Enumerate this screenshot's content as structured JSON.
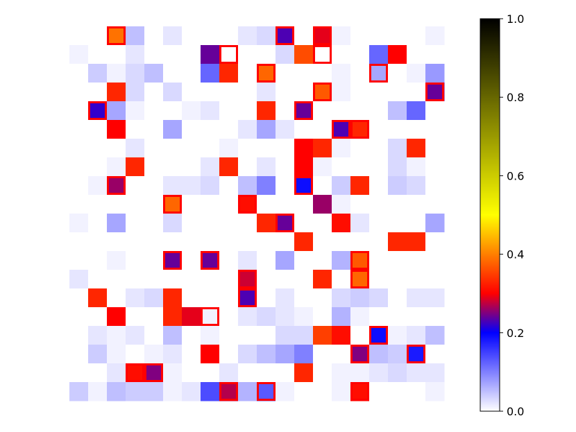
{
  "chart_data": {
    "type": "heatmap",
    "title": "",
    "xlabel": "",
    "ylabel": "",
    "axes_visible": false,
    "rows": 20,
    "cols": 20,
    "colormap": "gnuplot2_r",
    "colorbar": {
      "vmin": 0.0,
      "vmax": 1.0,
      "ticks": [
        "0.0",
        "0.2",
        "0.4",
        "0.6",
        "0.8",
        "1.0"
      ],
      "stops": [
        {
          "v": 0.0,
          "color": "#ffffff"
        },
        {
          "v": 0.2,
          "color": "#0000ff"
        },
        {
          "v": 0.3,
          "color": "#ff0000"
        },
        {
          "v": 0.4,
          "color": "#ff7f00"
        },
        {
          "v": 0.5,
          "color": "#ffff00"
        },
        {
          "v": 0.75,
          "color": "#808000"
        },
        {
          "v": 1.0,
          "color": "#000000"
        }
      ]
    },
    "highlight_color": "#ff0000",
    "values": [
      [
        0,
        0,
        0.39,
        0.05,
        0,
        0.02,
        0,
        0,
        0,
        0.02,
        0.03,
        0.23,
        0,
        0.29,
        0.01,
        0,
        0,
        0,
        0,
        0.01
      ],
      [
        0.01,
        0,
        0,
        0.02,
        0,
        0,
        0,
        0.24,
        0,
        0,
        0,
        0.03,
        0.36,
        0,
        0,
        0,
        0.12,
        0.3,
        0,
        0
      ],
      [
        0,
        0.04,
        0.01,
        0.03,
        0.05,
        0,
        0,
        0.12,
        0.33,
        0,
        0.38,
        0,
        0,
        0,
        0.01,
        0,
        0.07,
        0,
        0.01,
        0.08
      ],
      [
        0,
        0,
        0.33,
        0.03,
        0,
        0.03,
        0,
        0,
        0,
        0,
        0.02,
        0,
        0,
        0.37,
        0.01,
        0,
        0,
        0,
        0,
        0.24
      ],
      [
        0,
        0.22,
        0.07,
        0.01,
        0,
        0,
        0.01,
        0.02,
        0,
        0,
        0.33,
        0,
        0.24,
        0,
        0,
        0,
        0,
        0.05,
        0.12,
        0
      ],
      [
        0,
        0,
        0.3,
        0,
        0,
        0.07,
        0,
        0,
        0,
        0.02,
        0.07,
        0.02,
        0,
        0,
        0.23,
        0.33,
        0,
        0,
        0,
        0
      ],
      [
        0,
        0,
        0,
        0.02,
        0,
        0,
        0,
        0,
        0.01,
        0,
        0,
        0,
        0.3,
        0.33,
        0.01,
        0,
        0,
        0.03,
        0.33,
        0
      ],
      [
        0,
        0,
        0.01,
        0.33,
        0,
        0,
        0,
        0.02,
        0.33,
        0,
        0.02,
        0,
        0.3,
        0.01,
        0,
        0,
        0,
        0.03,
        0.01,
        0
      ],
      [
        0,
        0.01,
        0.26,
        0,
        0,
        0.02,
        0.02,
        0.03,
        0,
        0.05,
        0.1,
        0,
        0.19,
        0,
        0.04,
        0.33,
        0,
        0.04,
        0.03,
        0
      ],
      [
        0,
        0,
        0,
        0,
        0,
        0.38,
        0,
        0,
        0,
        0.31,
        0,
        0,
        0,
        0.26,
        0.01,
        0,
        0,
        0,
        0,
        0
      ],
      [
        0.01,
        0,
        0.07,
        0,
        0,
        0.03,
        0,
        0,
        0,
        0,
        0.33,
        0.24,
        0,
        0,
        0.31,
        0.02,
        0,
        0,
        0,
        0.07
      ],
      [
        0,
        0,
        0,
        0,
        0,
        0,
        0,
        0,
        0,
        0,
        0,
        0,
        0.33,
        0,
        0,
        0,
        0,
        0.33,
        0.33,
        0
      ],
      [
        0,
        0,
        0.01,
        0,
        0,
        0.24,
        0,
        0.24,
        0,
        0.02,
        0,
        0.07,
        0,
        0,
        0.06,
        0.37,
        0,
        0,
        0,
        0
      ],
      [
        0.02,
        0,
        0,
        0,
        0,
        0,
        0,
        0,
        0,
        0.28,
        0,
        0,
        0,
        0.33,
        0,
        0.38,
        0,
        0,
        0,
        0
      ],
      [
        0,
        0.33,
        0,
        0.02,
        0.03,
        0.33,
        0,
        0,
        0,
        0.23,
        0,
        0.02,
        0,
        0,
        0.03,
        0.04,
        0.03,
        0,
        0.02,
        0.02
      ],
      [
        0,
        0,
        0.3,
        0,
        0,
        0.33,
        0.29,
        0.01,
        0,
        0.02,
        0.03,
        0.02,
        0.01,
        0,
        0.06,
        0.01,
        0,
        0,
        0,
        0
      ],
      [
        0,
        0.02,
        0.01,
        0.02,
        0,
        0.05,
        0,
        0.01,
        0,
        0,
        0,
        0.03,
        0.03,
        0.35,
        0.31,
        0,
        0.19,
        0.01,
        0.02,
        0.05
      ],
      [
        0,
        0.04,
        0.01,
        0,
        0.01,
        0.02,
        0,
        0.3,
        0,
        0.03,
        0.05,
        0.07,
        0.1,
        0,
        0,
        0.25,
        0.05,
        0.04,
        0.18,
        0
      ],
      [
        0,
        0,
        0.02,
        0.31,
        0.25,
        0.01,
        0,
        0,
        0.02,
        0,
        0,
        0,
        0.33,
        0,
        0.01,
        0.01,
        0.02,
        0.03,
        0.02,
        0.02
      ],
      [
        0.04,
        0.01,
        0.05,
        0.04,
        0.04,
        0.01,
        0.02,
        0.14,
        0.27,
        0.06,
        0.13,
        0.01,
        0,
        0,
        0.01,
        0.31,
        0,
        0,
        0,
        0.01
      ]
    ],
    "highlighted": [
      [
        0,
        2
      ],
      [
        0,
        11
      ],
      [
        0,
        13
      ],
      [
        1,
        8
      ],
      [
        1,
        13
      ],
      [
        1,
        17
      ],
      [
        2,
        10
      ],
      [
        2,
        16
      ],
      [
        3,
        13
      ],
      [
        3,
        19
      ],
      [
        4,
        1
      ],
      [
        4,
        12
      ],
      [
        5,
        2
      ],
      [
        5,
        14
      ],
      [
        5,
        15
      ],
      [
        8,
        2
      ],
      [
        8,
        12
      ],
      [
        9,
        5
      ],
      [
        9,
        9
      ],
      [
        10,
        11
      ],
      [
        12,
        5
      ],
      [
        12,
        7
      ],
      [
        12,
        15
      ],
      [
        13,
        9
      ],
      [
        13,
        15
      ],
      [
        14,
        9
      ],
      [
        15,
        7
      ],
      [
        16,
        16
      ],
      [
        17,
        7
      ],
      [
        17,
        15
      ],
      [
        17,
        18
      ],
      [
        18,
        3
      ],
      [
        18,
        4
      ],
      [
        19,
        8
      ],
      [
        19,
        10
      ],
      [
        19,
        15
      ]
    ]
  }
}
